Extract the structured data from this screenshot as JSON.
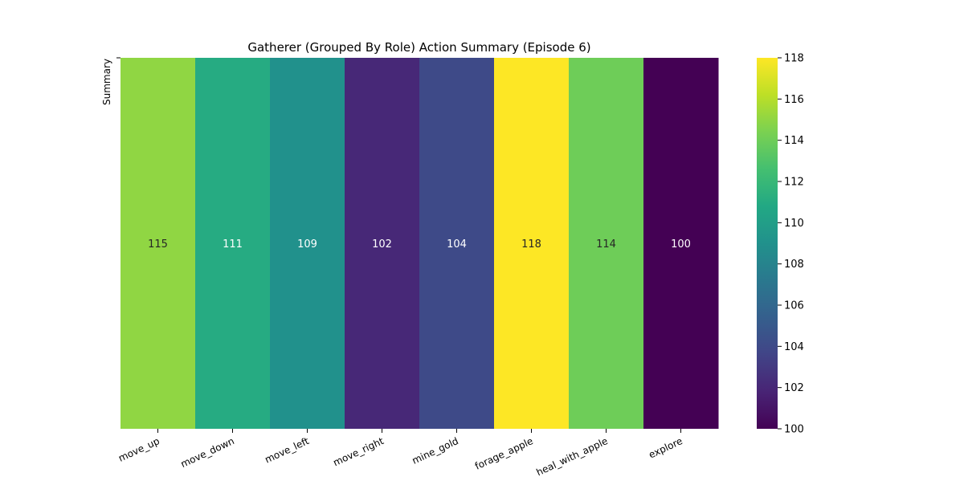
{
  "chart_data": {
    "type": "heatmap",
    "title": "Gatherer (Grouped By Role) Action Summary (Episode 6)",
    "ylabel": "Summary",
    "xlabel": "",
    "categories": [
      "move_up",
      "move_down",
      "move_left",
      "move_right",
      "mine_gold",
      "forage_apple",
      "heal_with_apple",
      "explore"
    ],
    "values": [
      115,
      111,
      109,
      102,
      104,
      118,
      114,
      100
    ],
    "colormap": "viridis",
    "colorbar": {
      "range": [
        100,
        118
      ],
      "ticks": [
        "100",
        "102",
        "104",
        "106",
        "108",
        "110",
        "112",
        "114",
        "116",
        "118"
      ]
    },
    "annotations": true,
    "grid": false,
    "legend": "none"
  }
}
